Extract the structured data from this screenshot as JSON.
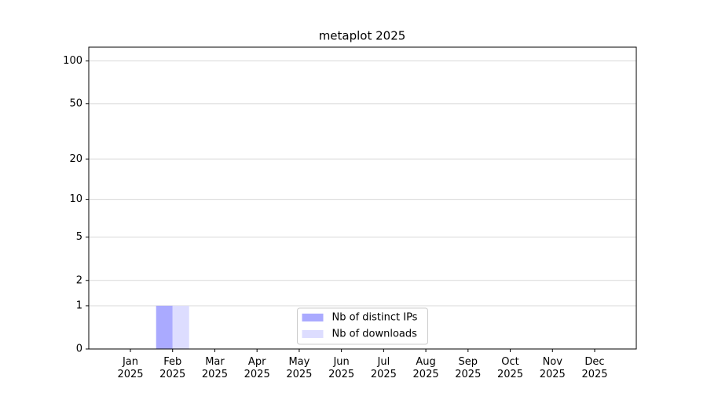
{
  "chart_data": {
    "type": "bar",
    "title": "metaplot 2025",
    "categories": [
      "Jan\n2025",
      "Feb\n2025",
      "Mar\n2025",
      "Apr\n2025",
      "May\n2025",
      "Jun\n2025",
      "Jul\n2025",
      "Aug\n2025",
      "Sep\n2025",
      "Oct\n2025",
      "Nov\n2025",
      "Dec\n2025"
    ],
    "series": [
      {
        "name": "Nb of distinct IPs",
        "color": "#aaaaff",
        "values": [
          0,
          1,
          0,
          0,
          0,
          0,
          0,
          0,
          0,
          0,
          0,
          0
        ]
      },
      {
        "name": "Nb of downloads",
        "color": "#ddddff",
        "values": [
          0,
          1,
          0,
          0,
          0,
          0,
          0,
          0,
          0,
          0,
          0,
          0
        ]
      }
    ],
    "yscale": "symlog",
    "ylim": [
      0,
      125
    ],
    "yticks": [
      0,
      1,
      2,
      5,
      10,
      20,
      50,
      100
    ],
    "grid": true,
    "legend": "lower center"
  }
}
